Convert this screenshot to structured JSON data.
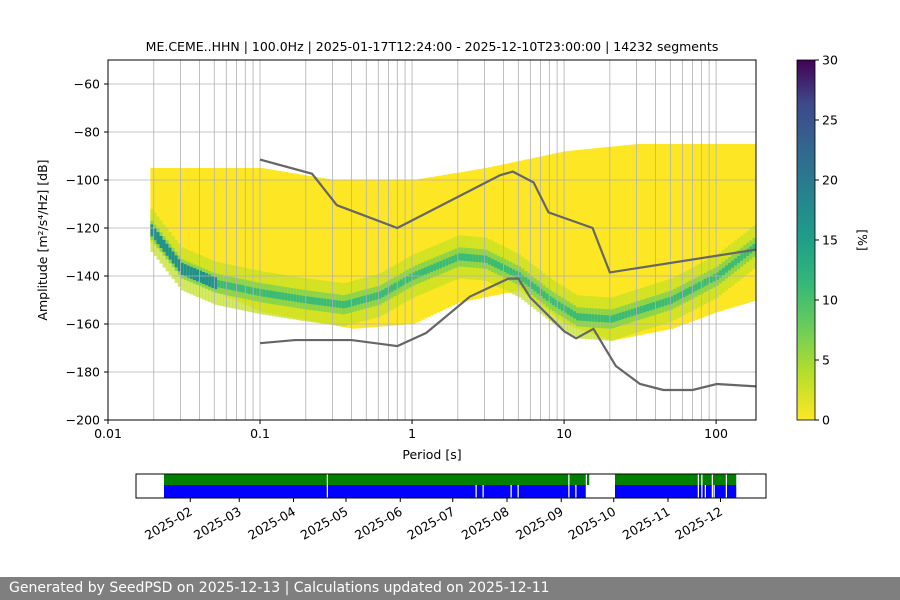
{
  "chart_data": [
    {
      "type": "heatmap",
      "title": "ME.CEME..HHN | 100.0Hz | 2025-01-17T12:24:00 - 2025-12-10T23:00:00 | 14232 segments",
      "xlabel": "Period [s]",
      "ylabel": "Amplitude [m²/s⁴/Hz] [dB]",
      "xscale": "log",
      "xlim": [
        0.01,
        183
      ],
      "ylim": [
        -200,
        -50
      ],
      "xticks": [
        {
          "v": 0.01,
          "label": "0.01"
        },
        {
          "v": 0.1,
          "label": "0.1"
        },
        {
          "v": 1,
          "label": "1"
        },
        {
          "v": 10,
          "label": "10"
        },
        {
          "v": 100,
          "label": "100"
        }
      ],
      "yticks": [
        {
          "v": -200,
          "label": "−200"
        },
        {
          "v": -180,
          "label": "−180"
        },
        {
          "v": -160,
          "label": "−160"
        },
        {
          "v": -140,
          "label": "−140"
        },
        {
          "v": -120,
          "label": "−120"
        },
        {
          "v": -100,
          "label": "−100"
        },
        {
          "v": -80,
          "label": "−80"
        },
        {
          "v": -60,
          "label": "−60"
        }
      ],
      "grid": true,
      "colormap": "viridis_r",
      "density_upper_edge": [
        [
          0.019,
          -95
        ],
        [
          0.1,
          -95
        ],
        [
          0.3,
          -100
        ],
        [
          1,
          -100
        ],
        [
          3,
          -95
        ],
        [
          10,
          -88
        ],
        [
          30,
          -85
        ],
        [
          100,
          -85
        ],
        [
          183,
          -85
        ]
      ],
      "density_lower_edge": [
        [
          0.019,
          -126
        ],
        [
          0.03,
          -140
        ],
        [
          0.1,
          -155
        ],
        [
          0.4,
          -162
        ],
        [
          1,
          -160
        ],
        [
          2,
          -151
        ],
        [
          5,
          -146
        ],
        [
          10,
          -160
        ],
        [
          20,
          -167
        ],
        [
          50,
          -162
        ],
        [
          100,
          -155
        ],
        [
          183,
          -150
        ]
      ],
      "density_mode": [
        [
          0.019,
          -121
        ],
        [
          0.03,
          -137
        ],
        [
          0.05,
          -143
        ],
        [
          0.1,
          -147
        ],
        [
          0.2,
          -150
        ],
        [
          0.35,
          -152
        ],
        [
          0.6,
          -148
        ],
        [
          1,
          -140
        ],
        [
          2,
          -132
        ],
        [
          3,
          -133
        ],
        [
          5,
          -140
        ],
        [
          8,
          -150
        ],
        [
          12,
          -157
        ],
        [
          20,
          -158
        ],
        [
          50,
          -150
        ],
        [
          100,
          -140
        ],
        [
          183,
          -127
        ]
      ],
      "noise_models": {
        "high": [
          [
            0.1,
            -91.5
          ],
          [
            0.22,
            -97.4
          ],
          [
            0.32,
            -110.5
          ],
          [
            0.8,
            -120
          ],
          [
            3.8,
            -98
          ],
          [
            4.6,
            -96.5
          ],
          [
            6.3,
            -101
          ],
          [
            7.9,
            -113.5
          ],
          [
            15.4,
            -120
          ],
          [
            20,
            -138.5
          ],
          [
            183,
            -129
          ]
        ],
        "low": [
          [
            0.1,
            -168
          ],
          [
            0.17,
            -166.7
          ],
          [
            0.4,
            -166.7
          ],
          [
            0.8,
            -169.2
          ],
          [
            1.24,
            -163.7
          ],
          [
            2.4,
            -148.6
          ],
          [
            4.3,
            -141.1
          ],
          [
            5,
            -141.1
          ],
          [
            6,
            -149
          ],
          [
            10,
            -163
          ],
          [
            12,
            -166
          ],
          [
            15.6,
            -162
          ],
          [
            21.9,
            -177.5
          ],
          [
            31.6,
            -185
          ],
          [
            45,
            -187.5
          ],
          [
            70,
            -187.5
          ],
          [
            101,
            -185
          ],
          [
            183,
            -186
          ]
        ]
      },
      "colorbar": {
        "label": "[%]",
        "range": [
          0,
          30
        ],
        "ticks": [
          "0",
          "5",
          "10",
          "15",
          "20",
          "25",
          "30"
        ]
      }
    },
    {
      "type": "timeline",
      "xlim": [
        "2025-01-01",
        "2025-12-27"
      ],
      "tick_labels": [
        "2025-02",
        "2025-03",
        "2025-04",
        "2025-05",
        "2025-06",
        "2025-07",
        "2025-08",
        "2025-09",
        "2025-10",
        "2025-11",
        "2025-12"
      ],
      "tick_dates": [
        "2025-02-01",
        "2025-03-01",
        "2025-04-01",
        "2025-05-01",
        "2025-06-01",
        "2025-07-01",
        "2025-08-01",
        "2025-09-01",
        "2025-10-01",
        "2025-11-01",
        "2025-12-01"
      ],
      "span": [
        "2025-01-17",
        "2025-12-10"
      ],
      "colors": {
        "upper": "#008000",
        "lower": "#0000ff"
      },
      "upper_gaps": [
        [
          "2025-04-20",
          "2025-04-21"
        ],
        [
          "2025-09-05",
          "2025-09-06"
        ],
        [
          "2025-09-15",
          "2025-09-16"
        ],
        [
          "2025-09-17",
          "2025-10-02"
        ],
        [
          "2025-11-18",
          "2025-11-19"
        ],
        [
          "2025-11-20",
          "2025-11-21"
        ],
        [
          "2025-11-26",
          "2025-11-27"
        ],
        [
          "2025-12-04",
          "2025-12-05"
        ]
      ],
      "lower_gaps": [
        [
          "2025-04-20",
          "2025-04-21"
        ],
        [
          "2025-07-14",
          "2025-07-15"
        ],
        [
          "2025-07-18",
          "2025-07-19"
        ],
        [
          "2025-08-03",
          "2025-08-04"
        ],
        [
          "2025-08-07",
          "2025-08-08"
        ],
        [
          "2025-09-05",
          "2025-09-06"
        ],
        [
          "2025-09-09",
          "2025-09-10"
        ],
        [
          "2025-09-15",
          "2025-10-02"
        ],
        [
          "2025-11-18",
          "2025-11-19"
        ],
        [
          "2025-11-20",
          "2025-11-21"
        ],
        [
          "2025-11-22",
          "2025-11-23"
        ],
        [
          "2025-11-26",
          "2025-11-27"
        ],
        [
          "2025-11-27",
          "2025-11-28"
        ],
        [
          "2025-12-04",
          "2025-12-05"
        ]
      ]
    }
  ],
  "footer": "Generated by SeedPSD on 2025-12-13 | Calculations updated on 2025-12-11"
}
